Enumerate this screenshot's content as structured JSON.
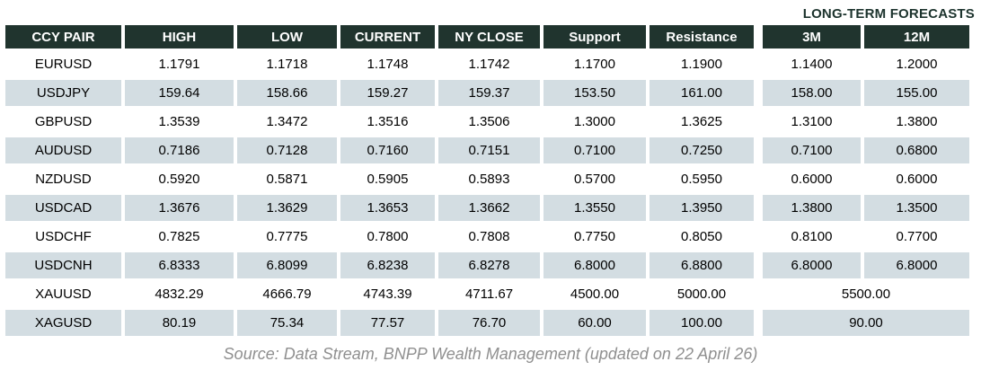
{
  "title": "LONG-TERM FORECASTS",
  "table": {
    "columns": [
      "CCY PAIR",
      "HIGH",
      "LOW",
      "CURRENT",
      "NY CLOSE",
      "Support",
      "Resistance",
      "3M",
      "12M"
    ],
    "rows": [
      {
        "pair": "EURUSD",
        "high": "1.1791",
        "low": "1.1718",
        "current": "1.1748",
        "ny_close": "1.1742",
        "support": "1.1700",
        "resistance": "1.1900",
        "forecast_3m": "1.1400",
        "forecast_12m": "1.2000"
      },
      {
        "pair": "USDJPY",
        "high": "159.64",
        "low": "158.66",
        "current": "159.27",
        "ny_close": "159.37",
        "support": "153.50",
        "resistance": "161.00",
        "forecast_3m": "158.00",
        "forecast_12m": "155.00"
      },
      {
        "pair": "GBPUSD",
        "high": "1.3539",
        "low": "1.3472",
        "current": "1.3516",
        "ny_close": "1.3506",
        "support": "1.3000",
        "resistance": "1.3625",
        "forecast_3m": "1.3100",
        "forecast_12m": "1.3800"
      },
      {
        "pair": "AUDUSD",
        "high": "0.7186",
        "low": "0.7128",
        "current": "0.7160",
        "ny_close": "0.7151",
        "support": "0.7100",
        "resistance": "0.7250",
        "forecast_3m": "0.7100",
        "forecast_12m": "0.6800"
      },
      {
        "pair": "NZDUSD",
        "high": "0.5920",
        "low": "0.5871",
        "current": "0.5905",
        "ny_close": "0.5893",
        "support": "0.5700",
        "resistance": "0.5950",
        "forecast_3m": "0.6000",
        "forecast_12m": "0.6000"
      },
      {
        "pair": "USDCAD",
        "high": "1.3676",
        "low": "1.3629",
        "current": "1.3653",
        "ny_close": "1.3662",
        "support": "1.3550",
        "resistance": "1.3950",
        "forecast_3m": "1.3800",
        "forecast_12m": "1.3500"
      },
      {
        "pair": "USDCHF",
        "high": "0.7825",
        "low": "0.7775",
        "current": "0.7800",
        "ny_close": "0.7808",
        "support": "0.7750",
        "resistance": "0.8050",
        "forecast_3m": "0.8100",
        "forecast_12m": "0.7700"
      },
      {
        "pair": "USDCNH",
        "high": "6.8333",
        "low": "6.8099",
        "current": "6.8238",
        "ny_close": "6.8278",
        "support": "6.8000",
        "resistance": "6.8800",
        "forecast_3m": "6.8000",
        "forecast_12m": "6.8000"
      },
      {
        "pair": "XAUUSD",
        "high": "4832.29",
        "low": "4666.79",
        "current": "4743.39",
        "ny_close": "4711.67",
        "support": "4500.00",
        "resistance": "5000.00",
        "forecast_3m_12m_merged": "5500.00"
      },
      {
        "pair": "XAGUSD",
        "high": "80.19",
        "low": "75.34",
        "current": "77.57",
        "ny_close": "76.70",
        "support": "60.00",
        "resistance": "100.00",
        "forecast_3m_12m_merged": "90.00"
      }
    ]
  },
  "footer": {
    "source": "Source: Data Stream, BNPP Wealth Management (updated on 22 April 26)"
  },
  "colors": {
    "background": "#ffffff",
    "header_bg": "#20342e",
    "header_text": "#ffffff",
    "alt_row_bg": "#d3dde2",
    "cell_text": "#000000",
    "title_text": "#1c332d",
    "source_text": "#8f8f8f"
  }
}
